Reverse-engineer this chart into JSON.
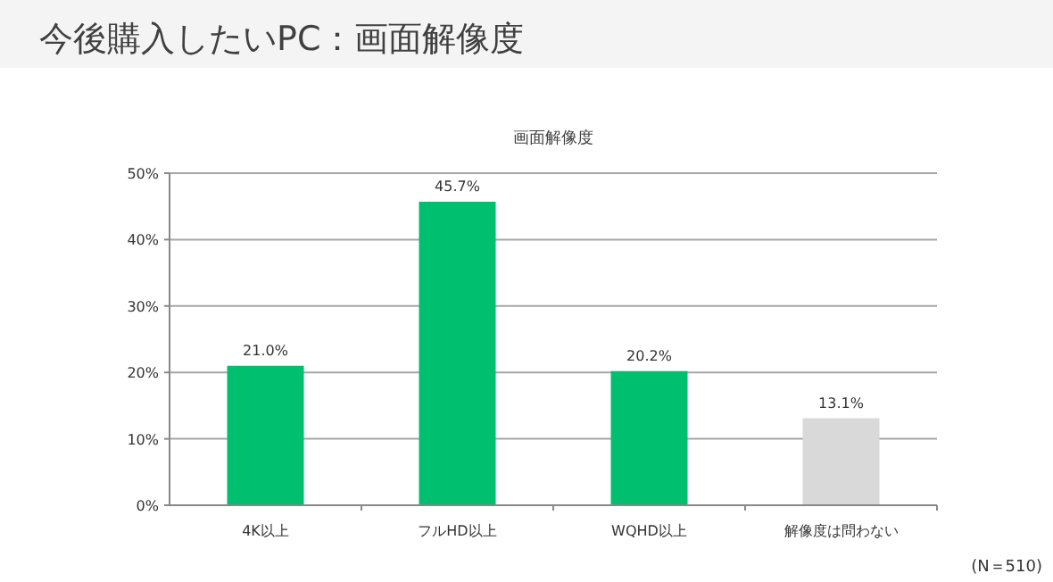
{
  "chart_data": {
    "type": "bar",
    "title": "今後購入したいPC：画面解像度",
    "subtitle": "画面解像度",
    "categories": [
      "4K以上",
      "フルHD以上",
      "WQHD以上",
      "解像度は問わない"
    ],
    "values": [
      21.0,
      45.7,
      20.2,
      13.1
    ],
    "colors": [
      "#00bf6f",
      "#00bf6f",
      "#00bf6f",
      "#d9d9d9"
    ],
    "value_labels": [
      "21.0%",
      "45.7%",
      "20.2%",
      "13.1%"
    ],
    "ylim": [
      0,
      50
    ],
    "yticks": [
      {
        "value": 0,
        "label": "0%"
      },
      {
        "value": 10,
        "label": "10%"
      },
      {
        "value": 20,
        "label": "20%"
      },
      {
        "value": 30,
        "label": "30%"
      },
      {
        "value": 40,
        "label": "40%"
      },
      {
        "value": 50,
        "label": "50%"
      }
    ],
    "grid": "y",
    "annotations": [
      "(N＝510)"
    ]
  }
}
